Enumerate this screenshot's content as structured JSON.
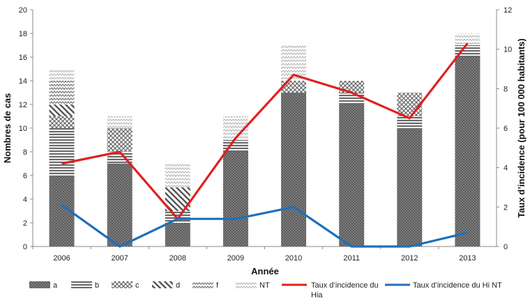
{
  "chart_data": {
    "type": "bar",
    "categories": [
      "2006",
      "2007",
      "2008",
      "2009",
      "2010",
      "2011",
      "2012",
      "2013"
    ],
    "xlabel": "Année",
    "ylabel": "Nombres de cas",
    "y2label": "Taux d’incidence (pour 100 000 habitants)",
    "ylim": [
      0,
      20
    ],
    "y2lim": [
      0,
      12
    ],
    "yticks": [
      0,
      2,
      4,
      6,
      8,
      10,
      12,
      14,
      16,
      18,
      20
    ],
    "y2ticks": [
      0,
      2,
      4,
      6,
      8,
      10,
      12
    ],
    "grid": false,
    "legend_position": "bottom",
    "bar_series": [
      {
        "name": "a",
        "pattern": "dots",
        "values": [
          6,
          7,
          2,
          8,
          13,
          12,
          10,
          16
        ]
      },
      {
        "name": "b",
        "pattern": "hlines",
        "values": [
          4,
          1,
          1,
          1,
          0,
          1,
          1,
          1
        ]
      },
      {
        "name": "c",
        "pattern": "cross",
        "values": [
          1,
          2,
          0,
          0,
          1,
          1,
          2,
          0
        ]
      },
      {
        "name": "d",
        "pattern": "diag",
        "values": [
          1,
          0,
          2,
          0,
          0,
          0,
          0,
          0
        ]
      },
      {
        "name": "f",
        "pattern": "zigzag",
        "values": [
          2,
          0,
          0,
          0,
          0,
          0,
          0,
          0
        ]
      },
      {
        "name": "NT",
        "pattern": "zigzag2",
        "values": [
          1,
          1,
          2,
          2,
          3,
          0,
          0,
          1
        ]
      }
    ],
    "line_series": [
      {
        "name": "Taux d’incidence du Hia",
        "color": "#e02020",
        "axis": "right",
        "values": [
          4.2,
          4.8,
          1.4,
          5.5,
          8.7,
          7.8,
          6.5,
          10.3
        ]
      },
      {
        "name": "Taux d’incidence du Hi NT",
        "color": "#1f6fba",
        "axis": "right",
        "values": [
          2.1,
          0.0,
          1.4,
          1.4,
          2.0,
          0.0,
          0.0,
          0.7
        ]
      }
    ],
    "legend_labels": {
      "a": "a",
      "b": "b",
      "c": "c",
      "d": "d",
      "f": "f",
      "NT": "NT",
      "hia_line1": "Taux d’incidence du",
      "hia_line2": "Hia",
      "hint": "Taux d’incidence du Hi NT"
    }
  }
}
